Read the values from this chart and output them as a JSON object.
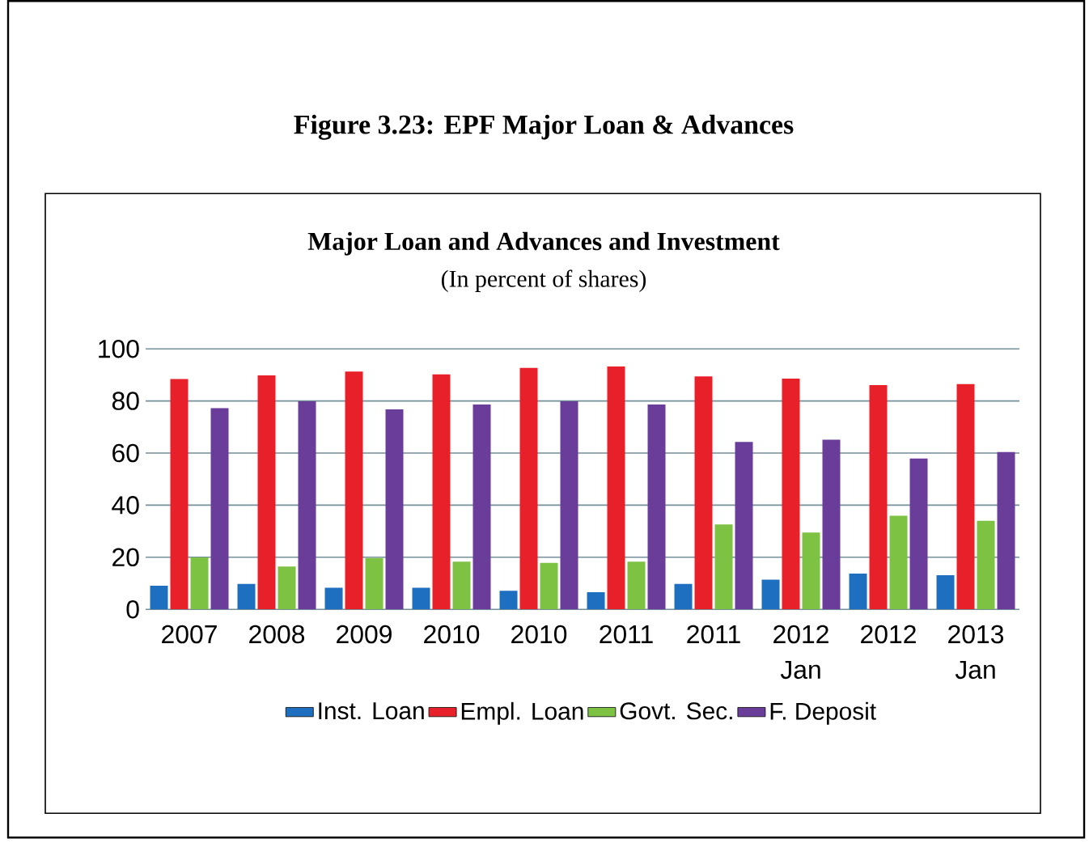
{
  "chart_data": {
    "type": "bar",
    "title": "Figure 3.23: EPF Major Loan & Advances",
    "subtitle": "Major Loan and Advances and Investment",
    "annotations": [
      "(In percent of shares)"
    ],
    "categories": [
      "2007",
      "2008",
      "2009",
      "2010",
      "2010",
      "2011",
      "2011",
      "2012 Jan",
      "2012",
      "2013 Jan"
    ],
    "series": [
      {
        "name": "Inst. Loan",
        "color": "#1f6fc0",
        "values": [
          9.1,
          9.8,
          8.3,
          8.3,
          7.1,
          6.6,
          9.8,
          11.4,
          13.7,
          13.1
        ]
      },
      {
        "name": "Empl. Loan",
        "color": "#e8202a",
        "values": [
          88.4,
          89.8,
          91.3,
          90.2,
          92.7,
          93.2,
          89.4,
          88.6,
          86.1,
          86.5
        ]
      },
      {
        "name": "Govt. Sec.",
        "color": "#7dc242",
        "values": [
          19.9,
          16.4,
          19.7,
          18.3,
          17.8,
          18.3,
          32.6,
          29.5,
          35.9,
          34.0
        ]
      },
      {
        "name": "F. Deposit",
        "color": "#6a3d9a",
        "values": [
          77.2,
          79.9,
          76.8,
          78.6,
          79.9,
          78.6,
          64.3,
          65.1,
          57.9,
          60.4
        ]
      }
    ],
    "ylim": [
      0,
      100
    ],
    "yticks": [
      0,
      20,
      40,
      60,
      80,
      100
    ],
    "grid": "y",
    "legend": "bottom"
  }
}
